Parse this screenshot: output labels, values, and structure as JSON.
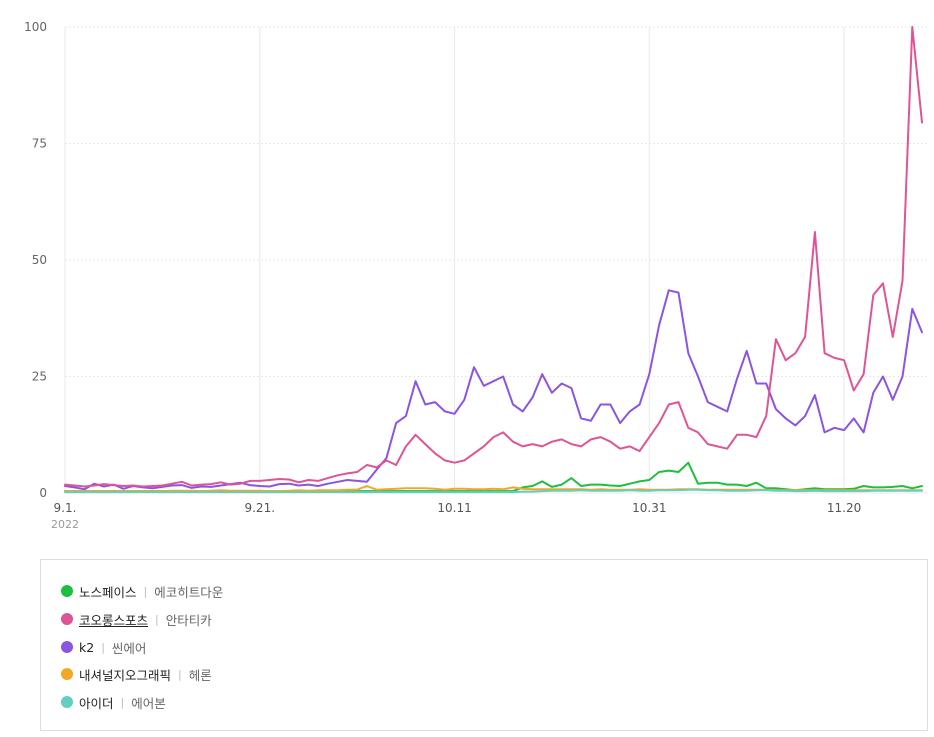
{
  "chart_data": {
    "type": "line",
    "y_ticks": [
      0,
      25,
      50,
      75,
      100
    ],
    "ylim": [
      0,
      100
    ],
    "x_ticks": [
      {
        "label": "9.1.",
        "sub": "2022",
        "day": 0
      },
      {
        "label": "9.21.",
        "sub": "",
        "day": 20
      },
      {
        "label": "10.11",
        "sub": "",
        "day": 40
      },
      {
        "label": "10.31",
        "sub": "",
        "day": 60
      },
      {
        "label": "11.20",
        "sub": "",
        "day": 80
      }
    ],
    "grid": true,
    "legend_position": "bottom",
    "series": [
      {
        "name": "k2",
        "color": "#8b55df",
        "values": [
          1.5,
          1.2,
          0.8,
          2.0,
          1.4,
          1.8,
          0.9,
          1.5,
          1.2,
          1.0,
          1.3,
          1.6,
          1.7,
          1.1,
          1.4,
          1.3,
          1.6,
          1.9,
          2.2,
          1.7,
          1.5,
          1.4,
          1.9,
          2.0,
          1.6,
          1.8,
          1.5,
          2.0,
          2.4,
          2.8,
          2.6,
          2.4,
          5.0,
          7.5,
          15.0,
          16.5,
          24.0,
          19.0,
          19.5,
          17.5,
          17.0,
          20.0,
          27.0,
          23.0,
          24.0,
          25.0,
          19.0,
          17.5,
          20.5,
          25.5,
          21.5,
          23.5,
          22.5,
          16.0,
          15.5,
          19.0,
          19.0,
          15.0,
          17.5,
          19.0,
          25.5,
          36.0,
          43.5,
          43.0,
          30.0,
          25.0,
          19.5,
          18.5,
          17.5,
          24.5,
          30.5,
          23.5,
          23.5,
          18.0,
          16.0,
          14.5,
          16.5,
          21.0,
          13.0,
          14.0,
          13.5,
          16.0,
          13.0,
          21.5,
          25.0,
          20.0,
          25.0,
          39.5,
          34.5
        ]
      },
      {
        "name": "코오롱스포츠",
        "color": "#dd5596",
        "values": [
          1.8,
          1.6,
          1.4,
          1.6,
          1.9,
          1.7,
          1.5,
          1.6,
          1.4,
          1.5,
          1.6,
          2.0,
          2.4,
          1.6,
          1.8,
          1.9,
          2.3,
          1.8,
          2.0,
          2.6,
          2.6,
          2.8,
          3.0,
          2.9,
          2.3,
          2.8,
          2.6,
          3.2,
          3.8,
          4.2,
          4.5,
          6.0,
          5.5,
          7.0,
          6.0,
          10.0,
          12.5,
          10.5,
          8.5,
          7.0,
          6.5,
          7.0,
          8.5,
          10.0,
          12.0,
          13.0,
          11.0,
          10.0,
          10.5,
          10.0,
          11.0,
          11.5,
          10.5,
          10.0,
          11.5,
          12.0,
          11.0,
          9.5,
          10.0,
          9.0,
          12.0,
          15.0,
          19.0,
          19.5,
          14.0,
          13.0,
          10.5,
          10.0,
          9.5,
          12.5,
          12.5,
          12.0,
          16.5,
          33.0,
          28.5,
          30.0,
          33.5,
          56.0,
          30.0,
          29.0,
          28.5,
          22.0,
          25.5,
          42.5,
          45.0,
          33.5,
          45.5,
          100.0,
          79.5
        ]
      },
      {
        "name": "노스페이스",
        "color": "#1dbf3e",
        "values": [
          0.4,
          0.4,
          0.4,
          0.4,
          0.4,
          0.4,
          0.4,
          0.4,
          0.4,
          0.4,
          0.4,
          0.4,
          0.4,
          0.4,
          0.4,
          0.4,
          0.4,
          0.4,
          0.4,
          0.4,
          0.4,
          0.4,
          0.4,
          0.4,
          0.4,
          0.4,
          0.4,
          0.4,
          0.4,
          0.4,
          0.4,
          0.4,
          0.4,
          0.4,
          0.4,
          0.4,
          0.4,
          0.4,
          0.4,
          0.4,
          0.4,
          0.4,
          0.4,
          0.4,
          0.4,
          0.4,
          0.4,
          1.2,
          1.5,
          2.5,
          1.3,
          1.8,
          3.2,
          1.5,
          1.8,
          1.8,
          1.6,
          1.5,
          2.0,
          2.5,
          2.8,
          4.5,
          4.8,
          4.5,
          6.5,
          2.0,
          2.2,
          2.2,
          1.8,
          1.8,
          1.5,
          2.2,
          1.0,
          1.0,
          0.8,
          0.6,
          0.8,
          1.0,
          0.8,
          0.8,
          0.8,
          0.9,
          1.5,
          1.2,
          1.2,
          1.3,
          1.5,
          1.0,
          1.5
        ]
      },
      {
        "name": "내셔널지오그래픽",
        "color": "#f3a726",
        "values": [
          0.4,
          0.4,
          0.4,
          0.4,
          0.4,
          0.4,
          0.4,
          0.4,
          0.4,
          0.4,
          0.4,
          0.5,
          0.5,
          0.5,
          0.4,
          0.5,
          0.6,
          0.5,
          0.5,
          0.5,
          0.5,
          0.4,
          0.4,
          0.5,
          0.6,
          0.5,
          0.6,
          0.6,
          0.6,
          0.7,
          0.7,
          1.5,
          0.7,
          0.8,
          0.9,
          1.0,
          1.0,
          1.0,
          0.9,
          0.7,
          0.9,
          0.9,
          0.8,
          0.8,
          0.9,
          0.8,
          1.2,
          0.9,
          0.8,
          0.8,
          0.8,
          0.8,
          0.8,
          0.8,
          0.7,
          0.8,
          0.7,
          0.7,
          0.7,
          0.8,
          0.7,
          0.7,
          0.7,
          0.8,
          0.8,
          0.8,
          0.7,
          0.7,
          0.7,
          0.7,
          0.7,
          0.7,
          0.7,
          0.6,
          0.6,
          0.6,
          0.6,
          0.6,
          0.6,
          0.6,
          0.6,
          0.6,
          0.6,
          0.6,
          0.6,
          0.6,
          0.6,
          0.6,
          0.6
        ]
      },
      {
        "name": "아이더",
        "color": "#62cfc0",
        "values": [
          0.2,
          0.2,
          0.2,
          0.2,
          0.2,
          0.2,
          0.2,
          0.2,
          0.2,
          0.2,
          0.2,
          0.2,
          0.2,
          0.2,
          0.2,
          0.2,
          0.2,
          0.2,
          0.2,
          0.2,
          0.2,
          0.2,
          0.2,
          0.2,
          0.2,
          0.2,
          0.2,
          0.2,
          0.2,
          0.2,
          0.2,
          0.2,
          0.2,
          0.2,
          0.2,
          0.2,
          0.2,
          0.2,
          0.2,
          0.2,
          0.2,
          0.2,
          0.2,
          0.2,
          0.2,
          0.2,
          0.2,
          0.3,
          0.3,
          0.4,
          0.5,
          0.5,
          0.5,
          0.6,
          0.5,
          0.5,
          0.5,
          0.5,
          0.6,
          0.5,
          0.5,
          0.6,
          0.6,
          0.6,
          0.7,
          0.7,
          0.6,
          0.6,
          0.5,
          0.5,
          0.5,
          0.6,
          0.6,
          0.5,
          0.5,
          0.4,
          0.4,
          0.5,
          0.4,
          0.4,
          0.4,
          0.4,
          0.4,
          0.5,
          0.5,
          0.5,
          0.5,
          0.5,
          0.5
        ]
      }
    ]
  },
  "legend": [
    {
      "name": "노스페이스",
      "alt": "에코히트다운",
      "color": "#1dbf3e",
      "underline": false
    },
    {
      "name": "코오롱스포츠",
      "alt": "안타티카",
      "color": "#dd5596",
      "underline": true
    },
    {
      "name": "k2",
      "alt": "씬에어",
      "color": "#8b55df",
      "underline": false
    },
    {
      "name": "내셔널지오그래픽",
      "alt": "헤론",
      "color": "#f3a726",
      "underline": false
    },
    {
      "name": "아이더",
      "alt": "에어본",
      "color": "#62cfc0",
      "underline": false
    }
  ],
  "legend_separator": "|"
}
